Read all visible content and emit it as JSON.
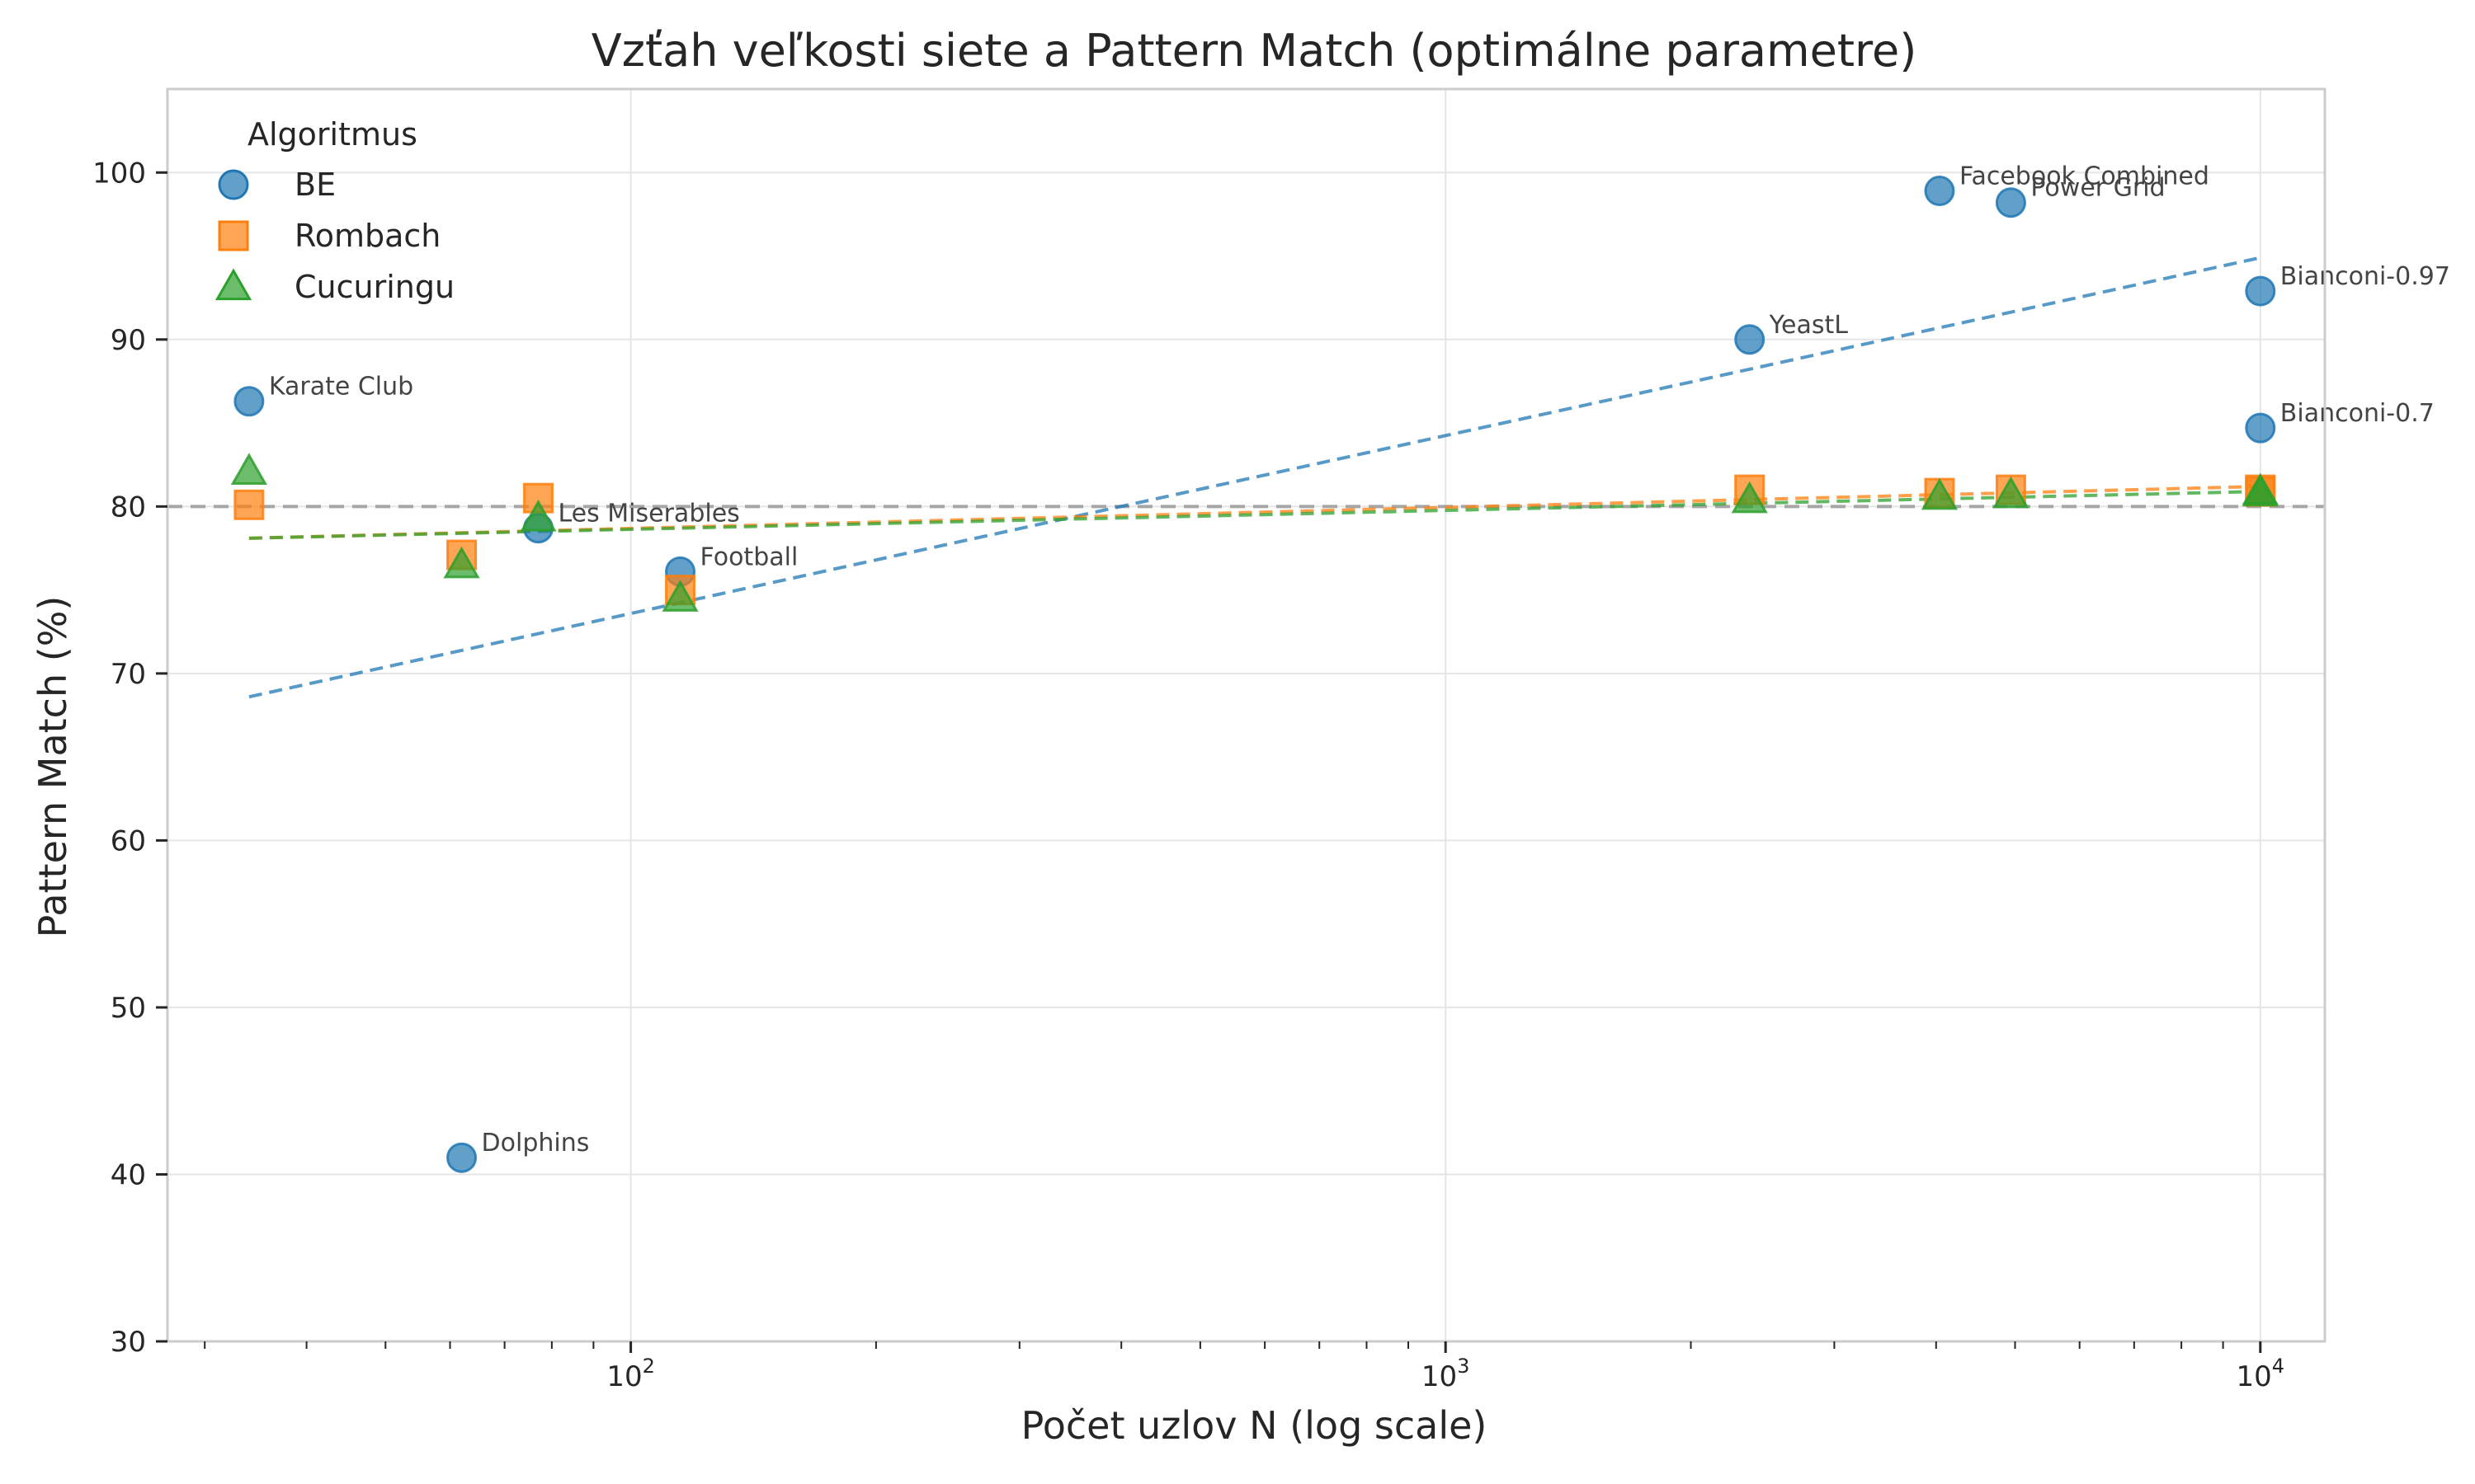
{
  "chart_data": {
    "type": "scatter",
    "title": "Vzťah veľkosti siete a Pattern Match (optimálne parametre)",
    "xlabel": "Počet uzlov N (log scale)",
    "ylabel": "Pattern Match (%)",
    "x_scale": "log",
    "xlim": [
      27,
      12000
    ],
    "ylim": [
      30,
      105
    ],
    "x_ticks": [
      100,
      1000,
      10000
    ],
    "x_tick_labels": [
      {
        "base": "10",
        "exp": "2"
      },
      {
        "base": "10",
        "exp": "3"
      },
      {
        "base": "10",
        "exp": "4"
      }
    ],
    "y_ticks": [
      30,
      40,
      50,
      60,
      70,
      80,
      90,
      100
    ],
    "y_tick_labels": [
      "30",
      "40",
      "50",
      "60",
      "70",
      "80",
      "90",
      "100"
    ],
    "grid": true,
    "reference_line_y": 80,
    "legend": {
      "title": "Algoritmus",
      "placement": "top-left"
    },
    "series": [
      {
        "name": "BE",
        "marker": "circle",
        "color": "#1f77b4",
        "points": [
          {
            "x": 34,
            "y": 86.3,
            "label": "Karate Club"
          },
          {
            "x": 62,
            "y": 41.0,
            "label": "Dolphins"
          },
          {
            "x": 77,
            "y": 78.7,
            "label": "Les Miserables"
          },
          {
            "x": 115,
            "y": 76.1,
            "label": "Football"
          },
          {
            "x": 2361,
            "y": 90.0,
            "label": "YeastL"
          },
          {
            "x": 4039,
            "y": 98.9,
            "label": "Facebook Combined"
          },
          {
            "x": 4941,
            "y": 98.2,
            "label": "Power Grid"
          },
          {
            "x": 10000,
            "y": 92.9,
            "label": "Bianconi-0.97"
          },
          {
            "x": 10000,
            "y": 84.7,
            "label": "Bianconi-0.7"
          }
        ],
        "trend": {
          "x": [
            34,
            10000
          ],
          "y": [
            68.6,
            94.9
          ]
        }
      },
      {
        "name": "Rombach",
        "marker": "square",
        "color": "#ff7f0e",
        "points": [
          {
            "x": 34,
            "y": 80.1
          },
          {
            "x": 62,
            "y": 77.1
          },
          {
            "x": 77,
            "y": 80.5
          },
          {
            "x": 115,
            "y": 75.0
          },
          {
            "x": 2361,
            "y": 81.0
          },
          {
            "x": 4039,
            "y": 80.8
          },
          {
            "x": 4941,
            "y": 81.0
          },
          {
            "x": 10000,
            "y": 81.0
          },
          {
            "x": 10000,
            "y": 80.9
          }
        ],
        "trend": {
          "x": [
            34,
            10000
          ],
          "y": [
            78.1,
            81.2
          ]
        }
      },
      {
        "name": "Cucuringu",
        "marker": "triangle",
        "color": "#2ca02c",
        "points": [
          {
            "x": 34,
            "y": 82.1
          },
          {
            "x": 62,
            "y": 76.5
          },
          {
            "x": 77,
            "y": 79.3
          },
          {
            "x": 115,
            "y": 74.5
          },
          {
            "x": 2361,
            "y": 80.4
          },
          {
            "x": 4039,
            "y": 80.6
          },
          {
            "x": 4941,
            "y": 80.7
          },
          {
            "x": 10000,
            "y": 80.8
          },
          {
            "x": 10000,
            "y": 80.9
          }
        ],
        "trend": {
          "x": [
            34,
            10000
          ],
          "y": [
            78.1,
            80.9
          ]
        }
      }
    ]
  }
}
